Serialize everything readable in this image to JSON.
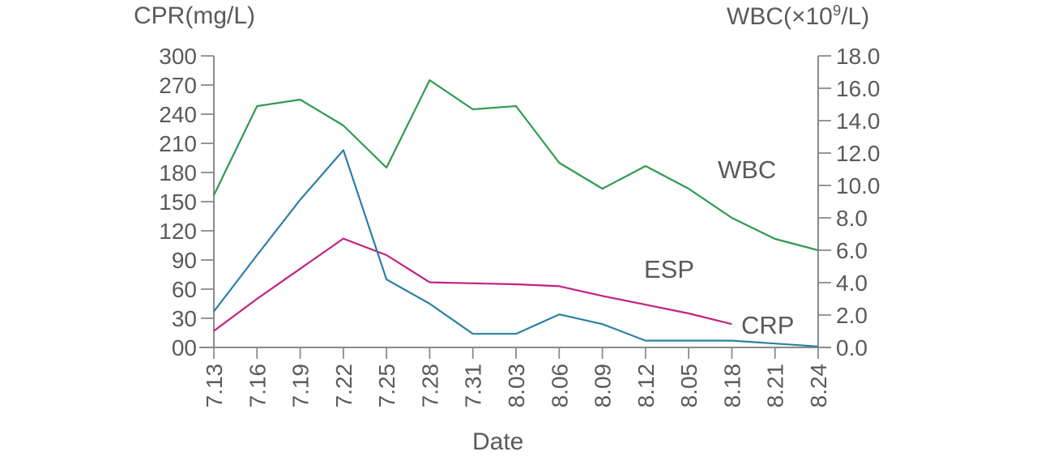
{
  "titles": {
    "left_axis_title": "CPR(mg/L)",
    "right_axis_title_prefix": "WBC(×10",
    "right_axis_title_sup": "9",
    "right_axis_title_suffix": "/L)",
    "x_axis_title": "Date"
  },
  "series_labels": {
    "wbc": "WBC",
    "esp": "ESP",
    "crp": "CRP"
  },
  "colors": {
    "wbc": "#2f9b50",
    "esp": "#c2217f",
    "crp": "#2b80a4",
    "axis": "#8a8a8a",
    "text": "#5a5a5a"
  },
  "chart_data": {
    "type": "line",
    "title": "",
    "categories": [
      "7.13",
      "7.16",
      "7.19",
      "7.22",
      "7.25",
      "7.28",
      "7.31",
      "8.03",
      "8.06",
      "8.09",
      "8.12",
      "8.05",
      "8.18",
      "8.21",
      "8.24"
    ],
    "x_axis": {
      "title": "Date",
      "tick_labels_rotated": true
    },
    "left_axis": {
      "title": "CPR(mg/L)",
      "min": 0,
      "max": 300,
      "tick_labels": [
        "300",
        "270",
        "240",
        "210",
        "180",
        "150",
        "120",
        "90",
        "60",
        "30",
        "00"
      ]
    },
    "right_axis": {
      "title": "WBC(×10⁹/L)",
      "min": 0,
      "max": 18,
      "tick_labels": [
        "18.0",
        "16.0",
        "14.0",
        "12.0",
        "10.0",
        "8.0",
        "6.0",
        "4.0",
        "2.0",
        "0.0"
      ]
    },
    "legend": "inline-labels",
    "grid": false,
    "series": [
      {
        "name": "WBC",
        "axis": "right",
        "color_key": "wbc",
        "values": [
          9.4,
          14.9,
          15.3,
          13.7,
          11.1,
          16.5,
          14.7,
          14.9,
          11.4,
          9.8,
          11.2,
          9.8,
          8.0,
          6.7,
          6.0
        ]
      },
      {
        "name": "ESP",
        "axis": "left",
        "color_key": "esp",
        "values": [
          17,
          50,
          81,
          112,
          95,
          67,
          66,
          65,
          63,
          53,
          44,
          35,
          24
        ]
      },
      {
        "name": "CRP",
        "axis": "left",
        "color_key": "crp",
        "values": [
          37,
          95,
          152,
          203,
          70,
          45,
          14,
          14,
          34,
          24,
          7,
          7,
          7,
          4,
          1
        ]
      }
    ]
  }
}
